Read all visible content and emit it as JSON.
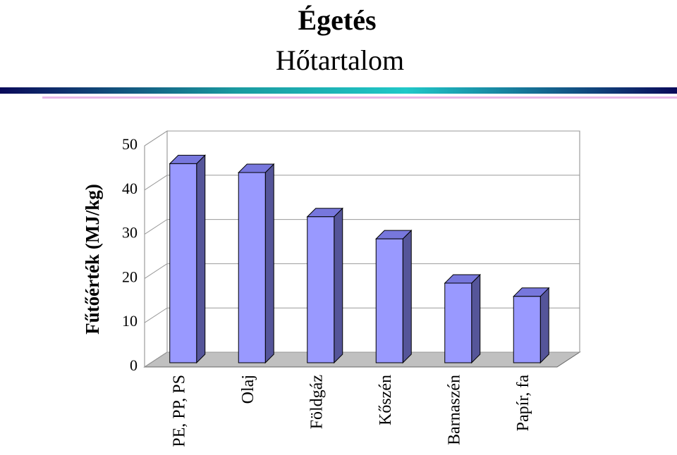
{
  "chart_data": {
    "type": "bar3d",
    "title": "Égetés",
    "subtitle": "Hőtartalom",
    "y_label": "Fűtőérték (MJ/kg)",
    "categories": [
      "PE, PP, PS",
      "Olaj",
      "Földgáz",
      "Kőszén",
      "Barnaszén",
      "Papír, fa"
    ],
    "values": [
      45,
      43,
      33,
      28,
      18,
      15
    ],
    "color": "#9999ff",
    "ylim": [
      0,
      50
    ],
    "yticks": [
      0,
      10,
      20,
      30,
      40,
      50
    ],
    "grid": true
  }
}
